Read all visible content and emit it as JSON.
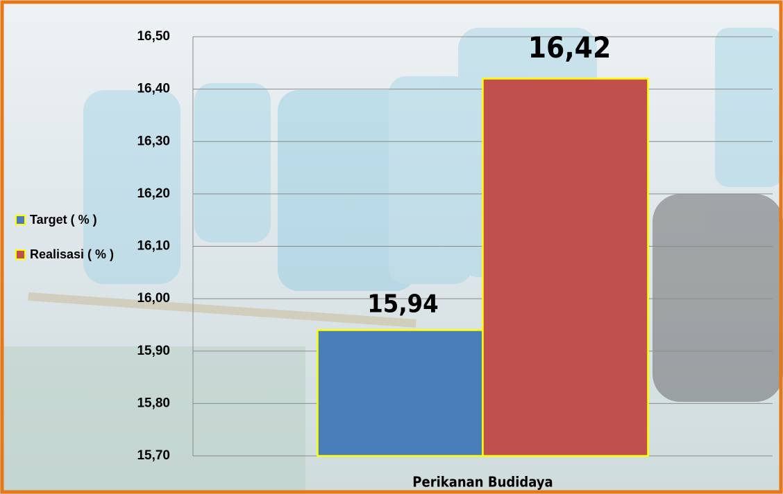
{
  "chart_data": {
    "type": "bar",
    "categories": [
      "Perikanan Budidaya"
    ],
    "series": [
      {
        "name": "Target ( % )",
        "color": "#4a7ebb",
        "values": [
          15.94
        ],
        "value_labels": [
          "15,94"
        ]
      },
      {
        "name": "Realisasi ( % )",
        "color": "#c0504d",
        "values": [
          16.42
        ],
        "value_labels": [
          "16,42"
        ]
      }
    ],
    "ylim": [
      15.7,
      16.5
    ],
    "yticks": [
      {
        "value": 15.7,
        "label": "15,70"
      },
      {
        "value": 15.8,
        "label": "15,80"
      },
      {
        "value": 15.9,
        "label": "15,90"
      },
      {
        "value": 16.0,
        "label": "16,00"
      },
      {
        "value": 16.1,
        "label": "16,10"
      },
      {
        "value": 16.2,
        "label": "16,20"
      },
      {
        "value": 16.3,
        "label": "16,30"
      },
      {
        "value": 16.4,
        "label": "16,40"
      },
      {
        "value": 16.5,
        "label": "16,50"
      }
    ],
    "grid": true,
    "legend": "left"
  }
}
